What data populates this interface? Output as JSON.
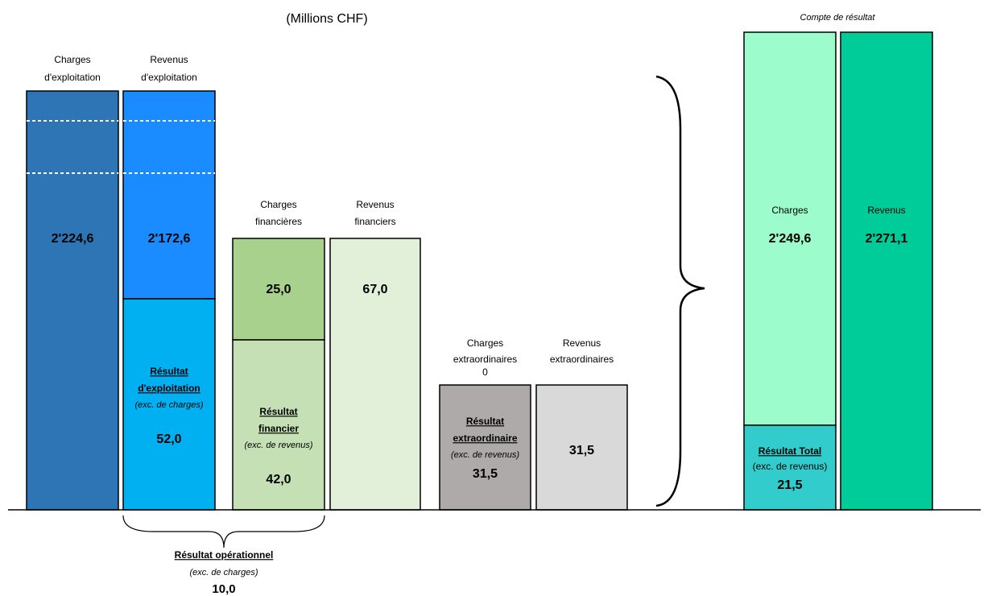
{
  "subtitle": "(Millions CHF)",
  "income_statement_label": "Compte de résultat",
  "columns": [
    {
      "header": [
        "Charges",
        "d'exploitation"
      ],
      "value": "2'224,6"
    },
    {
      "header": [
        "Revenus",
        "d'exploitation"
      ],
      "value": "2'172,6",
      "result": {
        "title": [
          "Résultat",
          "d'exploitation"
        ],
        "note": "(exc. de charges)",
        "value": "52,0"
      }
    },
    {
      "header": [
        "Charges",
        "financières"
      ],
      "value": "25,0",
      "result": {
        "title": [
          "Résultat",
          "financier"
        ],
        "note": "(exc. de revenus)",
        "value": "42,0"
      }
    },
    {
      "header": [
        "Revenus",
        "financiers"
      ],
      "value": "67,0"
    },
    {
      "header": [
        "Charges",
        "extraordinaires",
        "0"
      ],
      "result": {
        "title": [
          "Résultat",
          "extraordinaire"
        ],
        "note": "(exc. de revenus)",
        "value": "31,5"
      }
    },
    {
      "header": [
        "Revenus",
        "extraordinaires"
      ],
      "value": "31,5"
    },
    {
      "header": [
        "Charges"
      ],
      "value": "2'249,6",
      "result": {
        "title": [
          "Résultat Total"
        ],
        "note": "(exc. de revenus)",
        "value": "21,5"
      }
    },
    {
      "header": [
        "Revenus"
      ],
      "value": "2'271,1"
    }
  ],
  "operational_result": {
    "title": "Résultat opérationnel",
    "note": "(exc. de charges)",
    "value": "10,0"
  }
}
